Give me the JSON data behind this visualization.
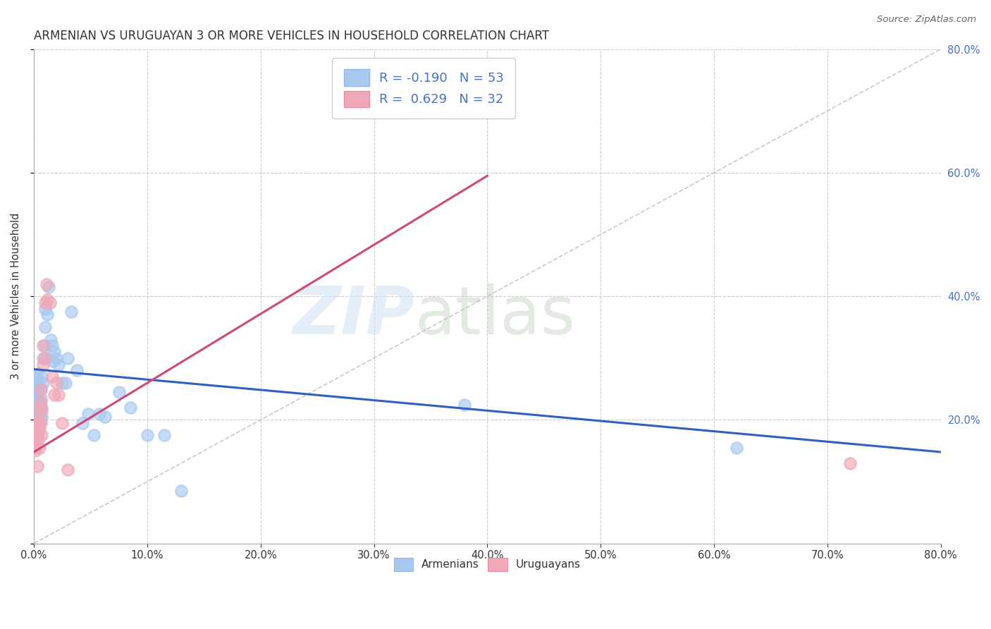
{
  "title": "ARMENIAN VS URUGUAYAN 3 OR MORE VEHICLES IN HOUSEHOLD CORRELATION CHART",
  "source": "Source: ZipAtlas.com",
  "ylabel": "3 or more Vehicles in Household",
  "xlim": [
    0.0,
    0.8
  ],
  "ylim": [
    0.0,
    0.8
  ],
  "yticks_right": [
    0.2,
    0.4,
    0.6,
    0.8
  ],
  "armenian_R": -0.19,
  "armenian_N": 53,
  "uruguayan_R": 0.629,
  "uruguayan_N": 32,
  "armenian_color": "#a8c8f0",
  "uruguayan_color": "#f0a8b8",
  "armenian_line_color": "#3060c0",
  "uruguayan_line_color": "#d04878",
  "legend_text_color": "#4472c4",
  "background_color": "#ffffff",
  "armenian_x": [
    0.001,
    0.001,
    0.002,
    0.002,
    0.002,
    0.003,
    0.003,
    0.003,
    0.003,
    0.004,
    0.004,
    0.004,
    0.005,
    0.005,
    0.005,
    0.005,
    0.006,
    0.006,
    0.006,
    0.007,
    0.007,
    0.007,
    0.008,
    0.008,
    0.009,
    0.01,
    0.01,
    0.011,
    0.012,
    0.013,
    0.015,
    0.016,
    0.017,
    0.018,
    0.02,
    0.022,
    0.025,
    0.028,
    0.03,
    0.033,
    0.038,
    0.043,
    0.048,
    0.053,
    0.058,
    0.063,
    0.075,
    0.085,
    0.1,
    0.115,
    0.13,
    0.38,
    0.62
  ],
  "armenian_y": [
    0.27,
    0.245,
    0.24,
    0.26,
    0.22,
    0.23,
    0.215,
    0.25,
    0.275,
    0.22,
    0.205,
    0.26,
    0.23,
    0.195,
    0.225,
    0.215,
    0.25,
    0.235,
    0.2,
    0.22,
    0.205,
    0.27,
    0.3,
    0.26,
    0.32,
    0.35,
    0.38,
    0.3,
    0.37,
    0.415,
    0.33,
    0.32,
    0.295,
    0.31,
    0.3,
    0.29,
    0.26,
    0.26,
    0.3,
    0.375,
    0.28,
    0.195,
    0.21,
    0.175,
    0.21,
    0.205,
    0.245,
    0.22,
    0.175,
    0.175,
    0.085,
    0.225,
    0.155
  ],
  "uruguayan_x": [
    0.001,
    0.001,
    0.002,
    0.002,
    0.003,
    0.003,
    0.003,
    0.004,
    0.004,
    0.004,
    0.005,
    0.005,
    0.005,
    0.006,
    0.006,
    0.006,
    0.007,
    0.007,
    0.008,
    0.008,
    0.009,
    0.01,
    0.011,
    0.012,
    0.014,
    0.016,
    0.018,
    0.02,
    0.022,
    0.025,
    0.03,
    0.72
  ],
  "uruguayan_y": [
    0.17,
    0.15,
    0.18,
    0.155,
    0.195,
    0.175,
    0.125,
    0.185,
    0.2,
    0.17,
    0.22,
    0.185,
    0.155,
    0.25,
    0.23,
    0.195,
    0.215,
    0.175,
    0.32,
    0.29,
    0.3,
    0.39,
    0.42,
    0.395,
    0.39,
    0.27,
    0.24,
    0.26,
    0.24,
    0.195,
    0.12,
    0.13
  ],
  "armenian_trend_x0": 0.0,
  "armenian_trend_y0": 0.282,
  "armenian_trend_x1": 0.8,
  "armenian_trend_y1": 0.148,
  "uruguayan_trend_x0": 0.0,
  "uruguayan_trend_y0": 0.148,
  "uruguayan_trend_x1": 0.4,
  "uruguayan_trend_y1": 0.595
}
